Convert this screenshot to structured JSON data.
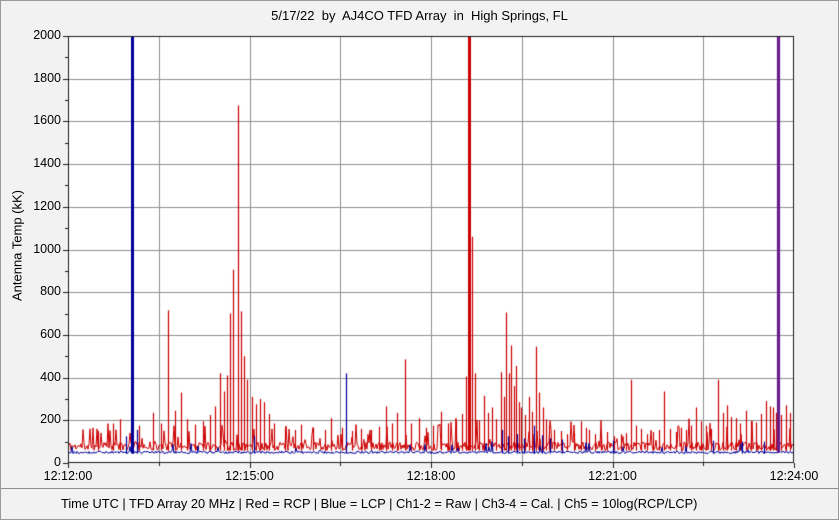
{
  "chart_data": {
    "type": "line",
    "title": "5/17/22  by  AJ4CO TFD Array  in  High Springs, FL",
    "xlabel": "Time UTC",
    "ylabel": "Antenna Temp (kK)",
    "x_range_s": [
      0,
      720
    ],
    "x_tick_s": [
      0,
      180,
      360,
      540,
      720
    ],
    "x_tick_labels": [
      "12:12:00",
      "12:15:00",
      "12:18:00",
      "12:21:00",
      "12:24:00"
    ],
    "x_minor_tick_s": [
      90,
      270,
      450,
      630
    ],
    "ylim": [
      0,
      2000
    ],
    "y_tick_step": 200,
    "y_unit": "kK",
    "grid": true,
    "legend_position": "none",
    "colors": {
      "grid": "#8f8f8f",
      "axis": "#1a1a1a",
      "plot_bg": "#ffffff",
      "page_bg": "#f2f2f2",
      "rcp": "#cc0000",
      "lcp": "#000099",
      "combined": "#6a1b8a"
    },
    "series": [
      {
        "name": "RCP",
        "color": "#cc0000",
        "seed": 11,
        "baseline": {
          "mean": 58,
          "noise": 40,
          "spikelet_p": 0.12,
          "spikelet_max": 120
        },
        "spikes": [
          [
            30,
            150
          ],
          [
            45,
            185
          ],
          [
            52,
            205
          ],
          [
            62,
            170
          ],
          [
            70,
            175
          ],
          [
            84,
            235
          ],
          [
            92,
            185
          ],
          [
            99,
            715
          ],
          [
            106,
            245
          ],
          [
            112,
            330
          ],
          [
            118,
            205
          ],
          [
            126,
            180
          ],
          [
            134,
            195
          ],
          [
            141,
            225
          ],
          [
            146,
            265
          ],
          [
            151,
            420
          ],
          [
            155,
            335
          ],
          [
            158,
            410
          ],
          [
            161,
            700
          ],
          [
            164,
            905
          ],
          [
            169,
            1675
          ],
          [
            172,
            710
          ],
          [
            175,
            500
          ],
          [
            178,
            390
          ],
          [
            182,
            310
          ],
          [
            186,
            275
          ],
          [
            190,
            300
          ],
          [
            194,
            285
          ],
          [
            199,
            230
          ],
          [
            204,
            185
          ],
          [
            215,
            165
          ],
          [
            225,
            155
          ],
          [
            231,
            180
          ],
          [
            243,
            165
          ],
          [
            255,
            155
          ],
          [
            261,
            210
          ],
          [
            272,
            165
          ],
          [
            282,
            150
          ],
          [
            291,
            160
          ],
          [
            300,
            155
          ],
          [
            308,
            170
          ],
          [
            315,
            265
          ],
          [
            321,
            185
          ],
          [
            326,
            235
          ],
          [
            334,
            485
          ],
          [
            340,
            185
          ],
          [
            348,
            210
          ],
          [
            355,
            165
          ],
          [
            362,
            175
          ],
          [
            370,
            240
          ],
          [
            377,
            185
          ],
          [
            385,
            195
          ],
          [
            391,
            230
          ],
          [
            395,
            405
          ],
          [
            398,
            2000
          ],
          [
            401,
            1060
          ],
          [
            404,
            420
          ],
          [
            408,
            200
          ],
          [
            413,
            315
          ],
          [
            417,
            235
          ],
          [
            420,
            260
          ],
          [
            424,
            205
          ],
          [
            429,
            425
          ],
          [
            432,
            310
          ],
          [
            434,
            705
          ],
          [
            437,
            420
          ],
          [
            439,
            550
          ],
          [
            442,
            360
          ],
          [
            444,
            455
          ],
          [
            447,
            285
          ],
          [
            449,
            260
          ],
          [
            453,
            225
          ],
          [
            457,
            310
          ],
          [
            460,
            240
          ],
          [
            464,
            545
          ],
          [
            467,
            330
          ],
          [
            471,
            260
          ],
          [
            474,
            205
          ],
          [
            477,
            175
          ],
          [
            482,
            155
          ],
          [
            489,
            150
          ],
          [
            495,
            135
          ],
          [
            502,
            140
          ],
          [
            509,
            195
          ],
          [
            514,
            165
          ],
          [
            517,
            155
          ],
          [
            523,
            135
          ],
          [
            529,
            125
          ],
          [
            535,
            145
          ],
          [
            541,
            125
          ],
          [
            548,
            135
          ],
          [
            553,
            140
          ],
          [
            558,
            390
          ],
          [
            563,
            175
          ],
          [
            568,
            160
          ],
          [
            574,
            135
          ],
          [
            580,
            145
          ],
          [
            586,
            155
          ],
          [
            591,
            335
          ],
          [
            597,
            160
          ],
          [
            603,
            145
          ],
          [
            608,
            165
          ],
          [
            613,
            155
          ],
          [
            618,
            175
          ],
          [
            623,
            260
          ],
          [
            628,
            195
          ],
          [
            633,
            175
          ],
          [
            638,
            160
          ],
          [
            645,
            390
          ],
          [
            650,
            235
          ],
          [
            654,
            270
          ],
          [
            658,
            215
          ],
          [
            662,
            210
          ],
          [
            666,
            185
          ],
          [
            672,
            245
          ],
          [
            677,
            195
          ],
          [
            682,
            190
          ],
          [
            687,
            230
          ],
          [
            692,
            290
          ],
          [
            696,
            265
          ],
          [
            699,
            260
          ],
          [
            702,
            235
          ],
          [
            707,
            225
          ],
          [
            712,
            270
          ],
          [
            716,
            235
          ]
        ]
      },
      {
        "name": "LCP",
        "color": "#000099",
        "seed": 29,
        "baseline": {
          "mean": 44,
          "noise": 12,
          "spikelet_p": 0.05,
          "spikelet_max": 45
        },
        "spikes": [
          [
            58,
            125
          ],
          [
            63,
            2000
          ],
          [
            68,
            155
          ],
          [
            184,
            125
          ],
          [
            276,
            420
          ],
          [
            430,
            155
          ],
          [
            436,
            125
          ],
          [
            445,
            135
          ],
          [
            452,
            115
          ],
          [
            462,
            175
          ],
          [
            470,
            130
          ],
          [
            478,
            115
          ],
          [
            490,
            110
          ],
          [
            540,
            105
          ],
          [
            640,
            105
          ],
          [
            668,
            100
          ],
          [
            690,
            100
          ]
        ]
      }
    ],
    "combined_spike": {
      "t": 704,
      "v": 2000,
      "color": "#6a1b8a"
    }
  },
  "footer": {
    "text": "Time UTC | TFD Array 20 MHz | Red = RCP | Blue = LCP | Ch1-2 = Raw | Ch3-4 = Cal. | Ch5 = 10log(RCP/LCP)"
  }
}
